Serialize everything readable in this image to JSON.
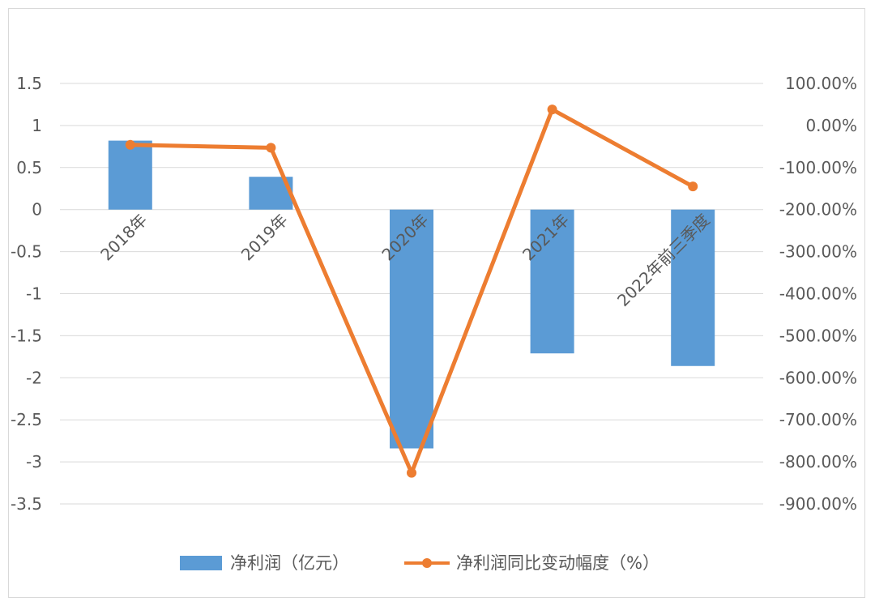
{
  "chart_data": {
    "type": "bar+line",
    "categories": [
      "2018年",
      "2019年",
      "2020年",
      "2021年",
      "2022年前三季度"
    ],
    "series": [
      {
        "name": "净利润（亿元）",
        "type": "bar",
        "axis": "left",
        "color": "#5b9bd5",
        "values": [
          0.82,
          0.39,
          -2.84,
          -1.71,
          -1.86
        ]
      },
      {
        "name": "净利润同比变动幅度（%）",
        "type": "line",
        "axis": "right",
        "color": "#ed7d31",
        "values": [
          -46,
          -53,
          -826,
          38,
          -145
        ]
      }
    ],
    "y_left": {
      "min": -3.5,
      "max": 1.5,
      "step": 0.5,
      "tick_labels": [
        "1.5",
        "1",
        "0.5",
        "0",
        "-0.5",
        "-1",
        "-1.5",
        "-2",
        "-2.5",
        "-3",
        "-3.5"
      ]
    },
    "y_right": {
      "min": -900,
      "max": 100,
      "step": 100,
      "tick_labels": [
        "100.00%",
        "0.00%",
        "-100.00%",
        "-200.00%",
        "-300.00%",
        "-400.00%",
        "-500.00%",
        "-600.00%",
        "-700.00%",
        "-800.00%",
        "-900.00%"
      ]
    },
    "grid": true,
    "legend_position": "bottom",
    "category_label_rotation": "diagonal"
  }
}
